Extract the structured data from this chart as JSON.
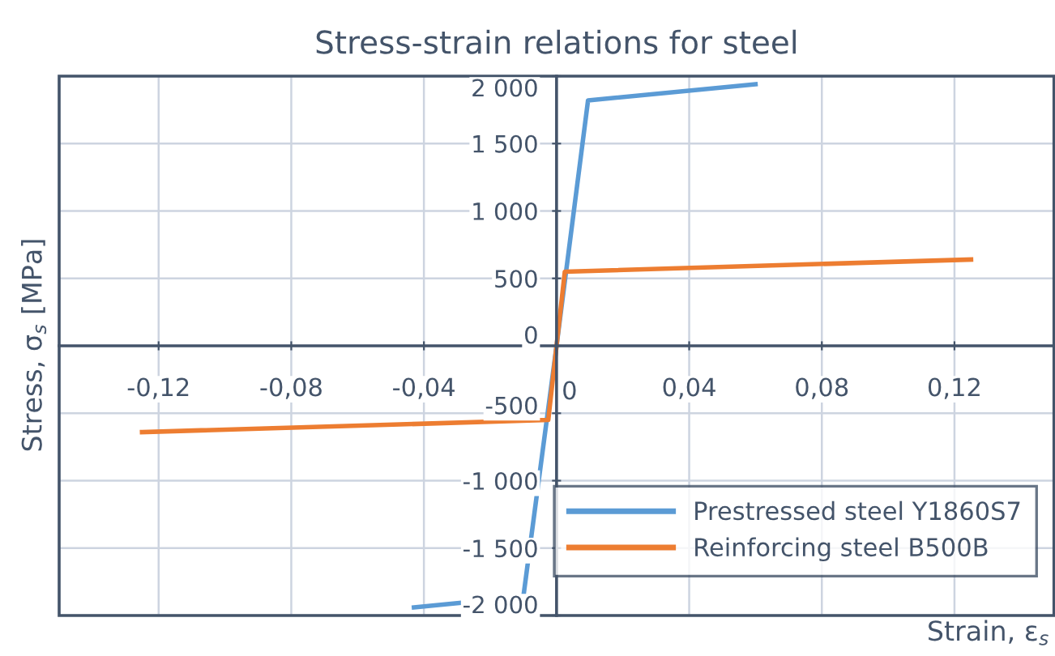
{
  "chart_data": {
    "type": "line",
    "title": "Stress-strain relations for steel",
    "xlabel": "Strain, ε$_{s}$",
    "ylabel": "Stress, σ$_{s}$ [MPa]",
    "series": [
      {
        "name": "Prestressed steel Y1860S7",
        "color": "#5b9bd5",
        "x": [
          -0.043,
          -0.01,
          0,
          0.0095,
          0.06
        ],
        "values": [
          -1940,
          -1860,
          0,
          1820,
          1940
        ]
      },
      {
        "name": "Reinforcing steel B500B",
        "color": "#ed7d31",
        "x": [
          -0.125,
          -0.0025,
          0,
          0.0025,
          0.125
        ],
        "values": [
          -640,
          -550,
          0,
          550,
          640
        ]
      }
    ],
    "xlim": [
      -0.15,
      0.15
    ],
    "ylim": [
      -2000,
      2000
    ],
    "xticks": [
      {
        "value": -0.12,
        "label": "-0,12"
      },
      {
        "value": -0.08,
        "label": "-0,08"
      },
      {
        "value": -0.04,
        "label": "-0,04"
      },
      0,
      {
        "value": 0.04,
        "label": "0,04"
      },
      {
        "value": 0.08,
        "label": "0,08"
      },
      {
        "value": 0.12,
        "label": "0,12"
      }
    ],
    "yticks": [
      {
        "value": -2000,
        "label": "-2 000"
      },
      {
        "value": -1500,
        "label": "-1 500"
      },
      {
        "value": -1000,
        "label": "-1 000"
      },
      {
        "value": -500,
        "label": "-500"
      },
      0,
      500,
      {
        "value": 1000,
        "label": "1 000"
      },
      {
        "value": 1500,
        "label": "1 500"
      },
      {
        "value": 2000,
        "label": "2 000"
      }
    ],
    "grid": true,
    "legend": "bottom right",
    "marker": "none",
    "line_style": "solid"
  }
}
